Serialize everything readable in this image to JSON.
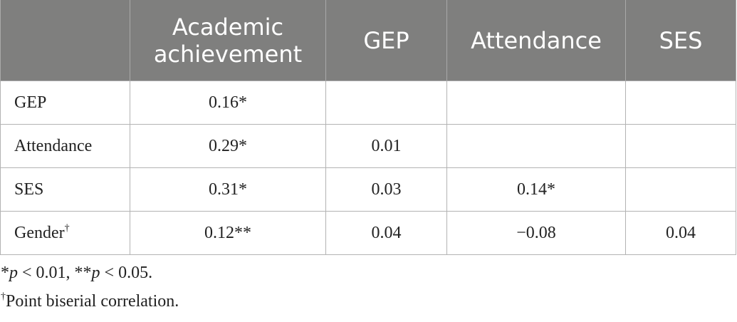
{
  "table": {
    "columns": [
      "",
      "Academic achievement",
      "GEP",
      "Attendance",
      "SES"
    ],
    "rows": [
      {
        "label": "GEP",
        "label_sup": "",
        "cells": [
          "0.16*",
          "",
          "",
          ""
        ]
      },
      {
        "label": "Attendance",
        "label_sup": "",
        "cells": [
          "0.29*",
          "0.01",
          "",
          ""
        ]
      },
      {
        "label": "SES",
        "label_sup": "",
        "cells": [
          "0.31*",
          "0.03",
          "0.14*",
          ""
        ]
      },
      {
        "label": "Gender",
        "label_sup": "†",
        "cells": [
          "0.12**",
          "0.04",
          "−0.08",
          "0.04"
        ]
      }
    ],
    "header_bg": "#7f7f7e"
  },
  "notes": {
    "note1": {
      "part1": "*",
      "p1": "p",
      "part2": " < 0.01, **",
      "p2": "p",
      "part3": " < 0.05."
    },
    "note2": {
      "sup": "†",
      "text": "Point biserial correlation."
    }
  }
}
